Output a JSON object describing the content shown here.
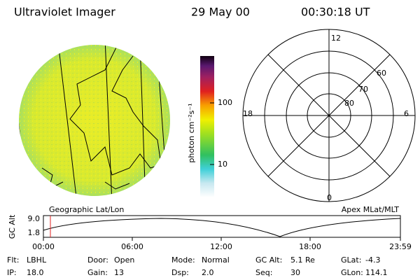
{
  "header": {
    "instrument": "Ultraviolet Imager",
    "date": "29 May 00",
    "time": "00:30:18 UT"
  },
  "image": {
    "label": "Geographic Lat/Lon"
  },
  "colorbar": {
    "label": "photon cm⁻²s⁻¹",
    "ticks": [
      "100",
      "10"
    ]
  },
  "polar": {
    "label": "Apex MLat/MLT",
    "lat_labels": [
      "60",
      "70",
      "80"
    ],
    "mlt_labels": [
      "12",
      "18",
      "6",
      "0"
    ]
  },
  "orbit": {
    "ylabel": "GC Alt",
    "yticks": [
      "9.0",
      "1.8"
    ],
    "xticks": [
      "00:00",
      "06:00",
      "12:00",
      "18:00",
      "23:59"
    ]
  },
  "info": [
    [
      {
        "label": "Flt:",
        "value": "LBHL"
      },
      {
        "label": "Door:",
        "value": "Open"
      },
      {
        "label": "Mode:",
        "value": "Normal"
      },
      {
        "label": "GC Alt:",
        "value": "5.1 Re"
      },
      {
        "label": "GLat:",
        "value": "-4.3"
      }
    ],
    [
      {
        "label": "IP:",
        "value": "18.0"
      },
      {
        "label": "Gain:",
        "value": "13"
      },
      {
        "label": "Dsp:",
        "value": "2.0"
      },
      {
        "label": "Seq:",
        "value": "30"
      },
      {
        "label": "GLon:",
        "value": "114.1"
      }
    ]
  ]
}
